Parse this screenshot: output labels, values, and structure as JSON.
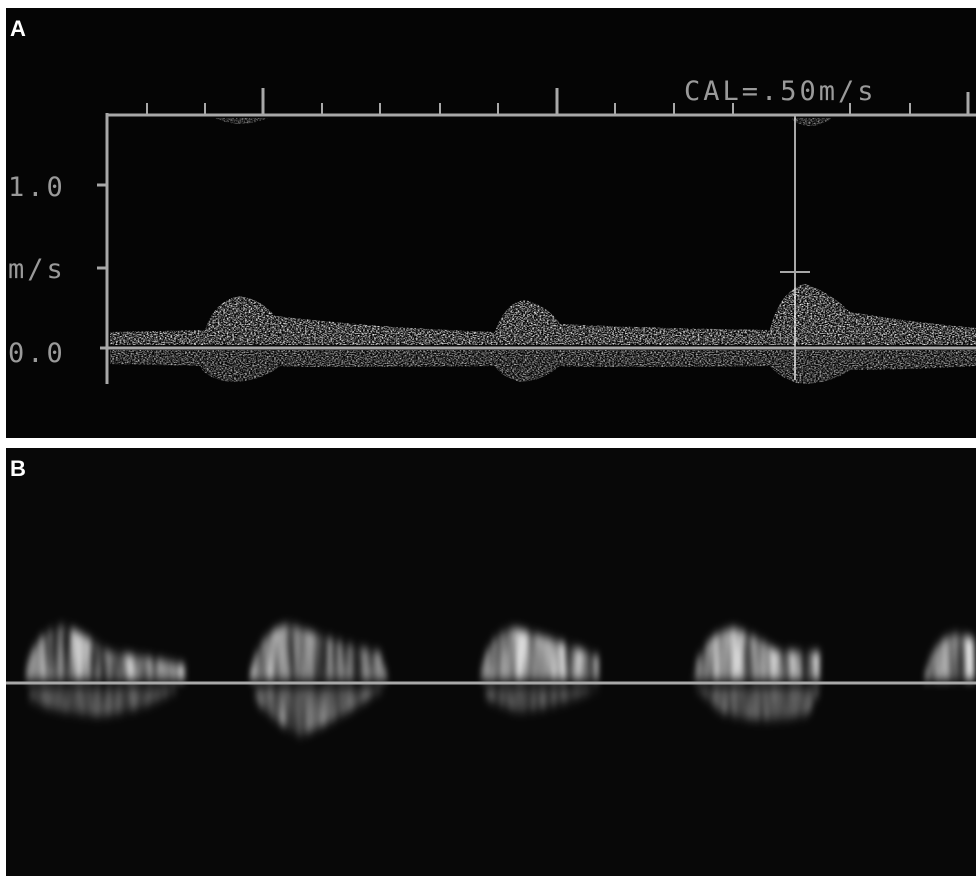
{
  "panels": [
    {
      "label": "A",
      "calibration": "CAL=.50m/s",
      "axis_labels": [
        "1.0",
        "m/s",
        "0.0"
      ]
    },
    {
      "label": "B"
    }
  ]
}
